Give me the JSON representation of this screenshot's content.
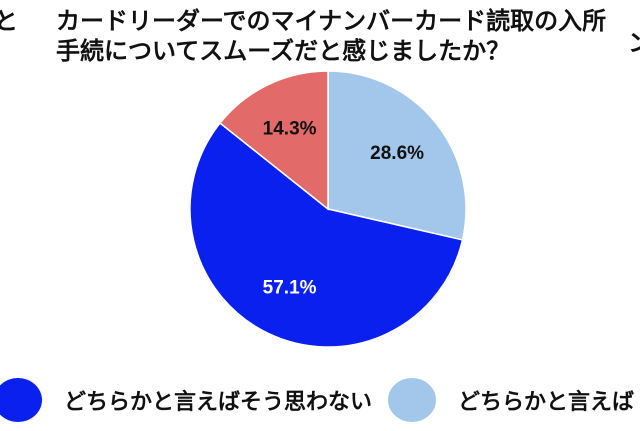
{
  "title": {
    "line1": "カードリーダーでのマイナンバーカード読取の入所",
    "line2": "手続についてスムーズだと感じましたか？",
    "cut_left_char": "と",
    "cut_right_char": "ン"
  },
  "chart_data": {
    "type": "pie",
    "start_angle_deg": 0,
    "direction": "clockwise",
    "slices": [
      {
        "name": "どちらかと言えばそう思う",
        "value": 28.6,
        "label": "28.6%",
        "color": "#a3c7ea",
        "label_color": "#111111"
      },
      {
        "name": "どちらかと言えばそう思わない",
        "value": 57.1,
        "label": "57.1%",
        "color": "#0a20ee",
        "label_color": "#ffffff"
      },
      {
        "name": "",
        "value": 14.3,
        "label": "14.3%",
        "color": "#e26b69",
        "label_color": "#111111"
      }
    ]
  },
  "legend": {
    "position": "bottom",
    "items": [
      {
        "label": "どちらかと言えばそう思わない",
        "color": "#0a20ee"
      },
      {
        "label": "どちらかと言えば",
        "color": "#a3c7ea"
      }
    ]
  }
}
